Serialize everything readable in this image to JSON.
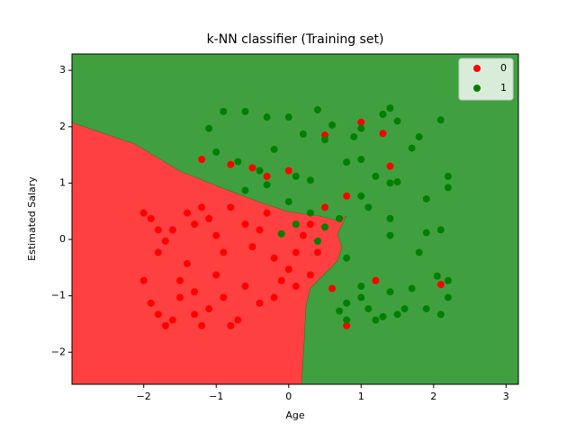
{
  "chart_data": {
    "type": "scatter",
    "title": "k-NN classifier (Training set)",
    "x_label": "Age",
    "y_label": "Estimated Salary",
    "xlim": [
      -2.99,
      3.17
    ],
    "ylim": [
      -2.57,
      3.29
    ],
    "xticks": [
      {
        "value": -2,
        "label": "−2"
      },
      {
        "value": -1,
        "label": "−1"
      },
      0,
      1,
      2,
      3
    ],
    "yticks": [
      {
        "value": -2,
        "label": "−2"
      },
      {
        "value": -1,
        "label": "−1"
      },
      0,
      1,
      2,
      3
    ],
    "legend": "upper right",
    "series": [
      {
        "name": "0",
        "color": "#ff0000",
        "x": [
          -2,
          -1.9,
          -1.8,
          -1.7,
          -1.8,
          -2,
          -1.9,
          -1.8,
          -1.6,
          -1.5,
          -1.4,
          -1.3,
          -1.2,
          -1.1,
          -1,
          -0.9,
          -1,
          -1.1,
          -1.2,
          -0.8,
          -0.7,
          -0.6,
          -0.5,
          -0.4,
          -0.3,
          -0.2,
          -0.1,
          0,
          0.1,
          0.2,
          0.3,
          0.4,
          0.5,
          0.6,
          0.8,
          1.2,
          2.1,
          -1.2,
          -0.8,
          -0.5,
          -0.3,
          0,
          0.5,
          1,
          1.3,
          1.4,
          0.8,
          -1.5,
          -1.3,
          -0.9,
          -0.4,
          -0.2,
          0.1,
          0.3,
          -0.6,
          -0.8,
          -1.4,
          -1.6,
          -1.7,
          -1.3
        ],
        "values": [
          0.47,
          0.37,
          0.17,
          -0.03,
          -0.23,
          -0.73,
          -1.13,
          -1.33,
          -1.43,
          -1.03,
          -0.43,
          0.27,
          0.57,
          0.37,
          0.07,
          -0.23,
          -0.63,
          -1.23,
          -1.53,
          -1.53,
          -1.43,
          -0.83,
          -0.13,
          0.17,
          0.47,
          -0.33,
          -0.73,
          -0.53,
          -0.23,
          0.07,
          0.27,
          -0.23,
          0.57,
          -0.87,
          -1.53,
          -0.73,
          -0.8,
          1.42,
          1.33,
          1.27,
          1.12,
          1.22,
          1.85,
          2.08,
          1.88,
          1.3,
          0.77,
          -0.73,
          -0.93,
          -1.03,
          -1.13,
          -1.03,
          -0.83,
          -0.63,
          0.27,
          0.57,
          0.47,
          0.17,
          -1.53,
          -1.33
        ]
      },
      {
        "name": "1",
        "color": "#008000",
        "x": [
          -1.1,
          -0.9,
          -0.6,
          -0.3,
          0,
          0.2,
          0.4,
          0.6,
          0.9,
          1,
          1.3,
          1.4,
          1.5,
          1.8,
          2.1,
          -1,
          -0.7,
          -0.4,
          -0.2,
          0.1,
          0.3,
          0.5,
          0.8,
          1,
          1.2,
          1.5,
          1.7,
          1.9,
          2.2,
          2.2,
          -0.6,
          -0.3,
          0,
          0.1,
          0.3,
          0.5,
          0.7,
          1,
          1.1,
          1.4,
          1.4,
          1.9,
          2.1,
          1.8,
          0.8,
          1,
          1,
          0.8,
          1.1,
          1.2,
          1.4,
          1.5,
          1.7,
          1.9,
          2.1,
          2.2,
          2.2,
          0.8,
          1.6,
          -0.1,
          0.4,
          1.4,
          1.3,
          0.7,
          2.05
        ],
        "values": [
          1.97,
          2.27,
          2.27,
          2.17,
          2.17,
          1.87,
          2.3,
          2.03,
          1.82,
          1.97,
          2.22,
          2.33,
          2.1,
          1.82,
          2.12,
          1.55,
          1.38,
          1.22,
          1.6,
          1.12,
          1.05,
          1.77,
          1.37,
          1.42,
          1.12,
          1.02,
          1.62,
          0.72,
          1.12,
          0.92,
          0.87,
          0.97,
          0.67,
          0.27,
          0.47,
          0.22,
          0.37,
          0.77,
          0.57,
          0.37,
          0.07,
          0.12,
          0.17,
          -0.23,
          -0.33,
          -0.83,
          -1.03,
          -1.13,
          -1.23,
          -1.43,
          -0.93,
          -1.33,
          -0.87,
          -1.23,
          -1.33,
          -0.73,
          -1.03,
          -1.43,
          -1.23,
          0.1,
          -0.03,
          1.0,
          -1.37,
          -1.27,
          -0.65
        ]
      }
    ]
  }
}
